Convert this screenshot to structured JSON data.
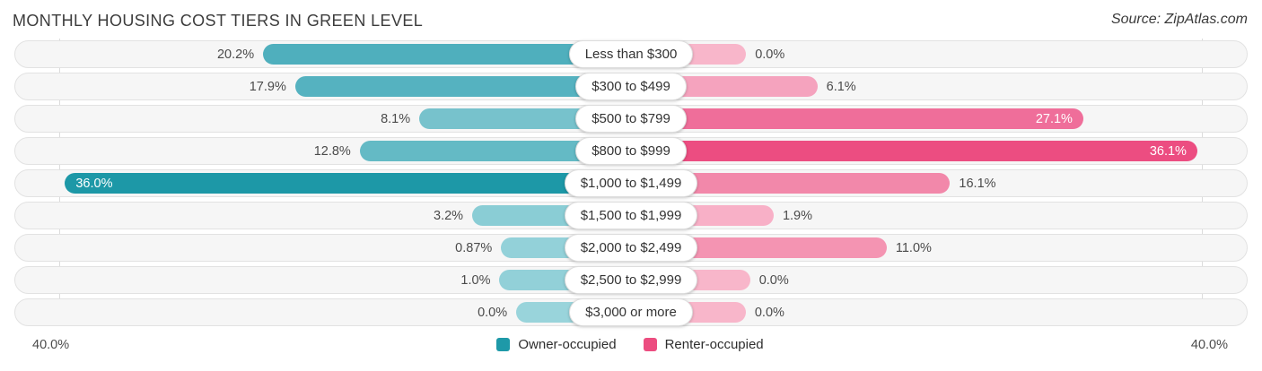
{
  "title": "MONTHLY HOUSING COST TIERS IN GREEN LEVEL",
  "source": "Source: ZipAtlas.com",
  "axis": {
    "left_max_label": "40.0%",
    "right_max_label": "40.0%",
    "max_value": 40
  },
  "legend": [
    {
      "label": "Owner-occupied",
      "color": "#1e99a8"
    },
    {
      "label": "Renter-occupied",
      "color": "#ec4d80"
    }
  ],
  "chart_data": {
    "type": "bar",
    "orientation": "diverging-horizontal",
    "title": "Monthly Housing Cost Tiers in Green Level",
    "categories": [
      "Less than $300",
      "$300 to $499",
      "$500 to $799",
      "$800 to $999",
      "$1,000 to $1,499",
      "$1,500 to $1,999",
      "$2,000 to $2,499",
      "$2,500 to $2,999",
      "$3,000 or more"
    ],
    "series": [
      {
        "name": "Owner-occupied",
        "side": "left",
        "values": [
          20.2,
          17.9,
          8.1,
          12.8,
          36.0,
          3.2,
          0.87,
          1.0,
          0.0
        ]
      },
      {
        "name": "Renter-occupied",
        "side": "right",
        "values": [
          0.0,
          6.1,
          27.1,
          36.1,
          16.1,
          1.9,
          11.0,
          0.0,
          0.0
        ]
      }
    ],
    "xlim": [
      0,
      40
    ],
    "legend_position": "bottom",
    "grid": "faint vertical lines at 40% extremes"
  },
  "rows": [
    {
      "category": "Less than $300",
      "owner": {
        "value": 20.2,
        "label": "20.2%",
        "color": "#4fafbd",
        "label_inside": false
      },
      "renter": {
        "value": 0.0,
        "label": "0.0%",
        "color": "#f8b6ca",
        "label_inside": false
      }
    },
    {
      "category": "$300 to $499",
      "owner": {
        "value": 17.9,
        "label": "17.9%",
        "color": "#55b2c0",
        "label_inside": false
      },
      "renter": {
        "value": 6.1,
        "label": "6.1%",
        "color": "#f5a3be",
        "label_inside": false
      }
    },
    {
      "category": "$500 to $799",
      "owner": {
        "value": 8.1,
        "label": "8.1%",
        "color": "#77c2cc",
        "label_inside": false
      },
      "renter": {
        "value": 27.1,
        "label": "27.1%",
        "color": "#ef6e9a",
        "label_inside": true
      }
    },
    {
      "category": "$800 to $999",
      "owner": {
        "value": 12.8,
        "label": "12.8%",
        "color": "#64bac5",
        "label_inside": false
      },
      "renter": {
        "value": 36.1,
        "label": "36.1%",
        "color": "#ec4d81",
        "label_inside": true
      }
    },
    {
      "category": "$1,000 to $1,499",
      "owner": {
        "value": 36.0,
        "label": "36.0%",
        "color": "#1d98a7",
        "label_inside": true
      },
      "renter": {
        "value": 16.1,
        "label": "16.1%",
        "color": "#f288aa",
        "label_inside": false
      }
    },
    {
      "category": "$1,500 to $1,999",
      "owner": {
        "value": 3.2,
        "label": "3.2%",
        "color": "#8acdd5",
        "label_inside": false
      },
      "renter": {
        "value": 1.9,
        "label": "1.9%",
        "color": "#f8b0c7",
        "label_inside": false
      }
    },
    {
      "category": "$2,000 to $2,499",
      "owner": {
        "value": 0.87,
        "label": "0.87%",
        "color": "#93d1d9",
        "label_inside": false
      },
      "renter": {
        "value": 11.0,
        "label": "11.0%",
        "color": "#f494b2",
        "label_inside": false
      }
    },
    {
      "category": "$2,500 to $2,999",
      "owner": {
        "value": 1.0,
        "label": "1.0%",
        "color": "#92d0d8",
        "label_inside": false
      },
      "renter": {
        "value": 0.0,
        "label": "0.0%",
        "color": "#f8b6ca",
        "label_inside": false
      }
    },
    {
      "category": "$3,000 or more",
      "owner": {
        "value": 0.0,
        "label": "0.0%",
        "color": "#99d4db",
        "label_inside": false
      },
      "renter": {
        "value": 0.0,
        "label": "0.0%",
        "color": "#f8b6ca",
        "label_inside": false
      }
    }
  ]
}
